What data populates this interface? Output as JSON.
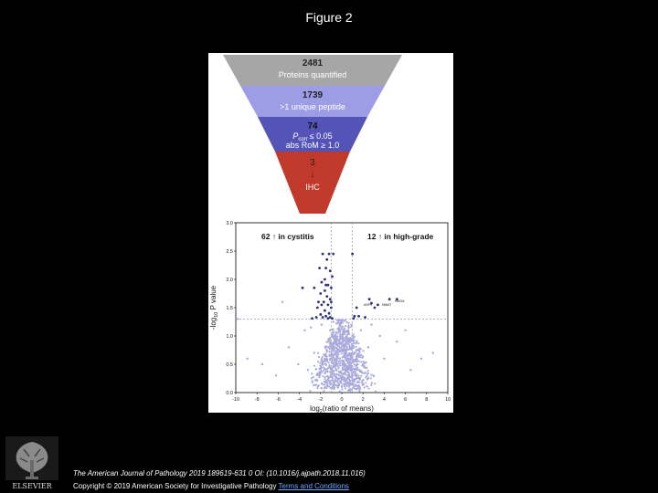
{
  "figure": {
    "title": "Figure 2"
  },
  "funnel": {
    "levels": [
      {
        "count": "2481",
        "label": "Proteins quantified",
        "color": "#a6a6a6"
      },
      {
        "count": "1739",
        "label": ">1 unique peptide",
        "color": "#9d9de6"
      },
      {
        "count": "74",
        "label_line1": "P",
        "label_line1_sub": "corr",
        "label_line1_rest": "≤ 0.05",
        "label_line2": "abs RoM ≥ 1.0",
        "color": "#5454b8"
      },
      {
        "count": "3",
        "arrow": "↓",
        "label": "IHC",
        "color": "#c0392b"
      }
    ]
  },
  "volcano": {
    "annotation_left": "62 ↑ in cystitis",
    "annotation_right": "12 ↑ in high-grade",
    "ylabel_prefix": "-log",
    "ylabel_sub": "10",
    "ylabel_rest": " P value",
    "xlabel_prefix": "log",
    "xlabel_sub": "2",
    "xlabel_rest": "(ratio of means)",
    "point_labels": [
      "HMGA",
      "ASPn",
      "NNMT"
    ],
    "colors": {
      "background_points": "#a9a9dc",
      "significant_points": "#2e2e7a",
      "threshold": "#888888"
    }
  },
  "chart_data": {
    "type": "scatter",
    "title": "",
    "xlabel": "log2(ratio of means)",
    "ylabel": "-log10 P value",
    "xlim": [
      -10,
      10
    ],
    "ylim": [
      0,
      3.0
    ],
    "xticks": [
      "-10",
      "-8",
      "-6",
      "-4",
      "-2",
      "0",
      "2",
      "4",
      "6",
      "8",
      "10"
    ],
    "yticks": [
      "0.0",
      "0.5",
      "1.0",
      "1.5",
      "2.0",
      "2.5",
      "3.0"
    ],
    "threshold_x": [
      -1,
      1
    ],
    "threshold_y": 1.3,
    "series": [
      {
        "name": "",
        "points": [
          [
            -1.8,
            2.45
          ],
          [
            -1.2,
            2.45
          ],
          [
            -0.8,
            2.45
          ],
          [
            -1.4,
            2.35
          ],
          [
            -1.5,
            2.2
          ],
          [
            -2.1,
            2.2
          ],
          [
            -1.1,
            2.15
          ],
          [
            -1.6,
            2.0
          ],
          [
            -1.9,
            1.95
          ],
          [
            -1.3,
            1.9
          ],
          [
            -1.0,
            1.85
          ],
          [
            -2.6,
            1.85
          ],
          [
            -3.7,
            1.85
          ],
          [
            -1.6,
            1.8
          ],
          [
            -2.0,
            1.75
          ],
          [
            -1.4,
            1.7
          ],
          [
            -1.1,
            1.65
          ],
          [
            -1.7,
            1.6
          ],
          [
            -1.9,
            1.55
          ],
          [
            -1.3,
            1.55
          ],
          [
            -2.3,
            1.5
          ],
          [
            -1.0,
            1.5
          ],
          [
            -1.6,
            1.45
          ],
          [
            -1.2,
            1.4
          ],
          [
            -2.0,
            1.38
          ],
          [
            -1.5,
            1.35
          ],
          [
            -1.1,
            1.33
          ],
          [
            -1.8,
            1.33
          ],
          [
            -2.4,
            1.33
          ],
          [
            -1.3,
            1.31
          ],
          [
            -0.9,
            1.31
          ],
          [
            -2.8,
            1.31
          ],
          [
            -1.0,
            1.6
          ],
          [
            -1.5,
            1.9
          ],
          [
            -2.2,
            1.6
          ],
          [
            -0.9,
            2.05
          ],
          [
            1.0,
            2.45
          ],
          [
            2.6,
            1.65
          ],
          [
            2.8,
            1.58
          ],
          [
            3.4,
            1.55
          ],
          [
            4.5,
            1.65
          ],
          [
            5.2,
            1.65
          ],
          [
            1.2,
            1.35
          ],
          [
            1.6,
            1.35
          ],
          [
            2.2,
            1.33
          ],
          [
            1.1,
            1.31
          ],
          [
            3.1,
            1.5
          ],
          [
            1.4,
            1.5
          ]
        ]
      },
      {
        "name": "",
        "points": [
          [
            -0.2,
            0.3
          ],
          [
            0.1,
            0.5
          ],
          [
            -0.4,
            0.7
          ],
          [
            0.3,
            0.2
          ],
          [
            0.5,
            0.9
          ],
          [
            -0.6,
            1.0
          ],
          [
            0.8,
            0.6
          ],
          [
            -0.9,
            0.4
          ],
          [
            0.2,
            1.1
          ],
          [
            -0.1,
            0.8
          ],
          [
            1.2,
            0.7
          ],
          [
            -1.3,
            0.9
          ],
          [
            0.6,
            0.3
          ],
          [
            -0.5,
            0.2
          ],
          [
            1.5,
            0.4
          ],
          [
            -1.6,
            0.6
          ],
          [
            2.0,
            0.5
          ],
          [
            -2.1,
            0.3
          ],
          [
            0.9,
            1.2
          ],
          [
            -0.8,
            1.25
          ],
          [
            2.5,
            0.8
          ],
          [
            -2.6,
            0.7
          ],
          [
            3.0,
            0.3
          ],
          [
            -3.2,
            0.4
          ],
          [
            4.0,
            0.6
          ],
          [
            -4.1,
            0.5
          ],
          [
            5.2,
            0.9
          ],
          [
            -5.0,
            0.8
          ],
          [
            6.5,
            0.4
          ],
          [
            -6.2,
            0.3
          ],
          [
            7.5,
            0.6
          ],
          [
            -7.5,
            0.5
          ],
          [
            8.6,
            0.7
          ],
          [
            -8.9,
            0.6
          ],
          [
            -9.8,
            1.3
          ],
          [
            -5.6,
            1.6
          ],
          [
            0.0,
            0.1
          ],
          [
            0.4,
            0.15
          ],
          [
            -0.3,
            0.12
          ],
          [
            1.0,
            1.0
          ],
          [
            -1.1,
            1.1
          ],
          [
            1.8,
            1.1
          ],
          [
            -1.9,
            1.2
          ],
          [
            0.7,
            0.05
          ],
          [
            -0.7,
            0.08
          ],
          [
            3.6,
            1.0
          ],
          [
            -3.5,
            1.1
          ],
          [
            2.8,
            1.2
          ],
          [
            -2.9,
            1.15
          ],
          [
            6.0,
            1.1
          ]
        ]
      }
    ],
    "grid": false,
    "legend": "none"
  },
  "footer": {
    "citation": "The American Journal of Pathology 2019 189619-631 0 OI: (10.1016/j.ajpath.2018.11.016)",
    "copyright_prefix": "Copyright © 2019 American Society for Investigative Pathology",
    "copyright_link": "Terms and Conditions"
  }
}
